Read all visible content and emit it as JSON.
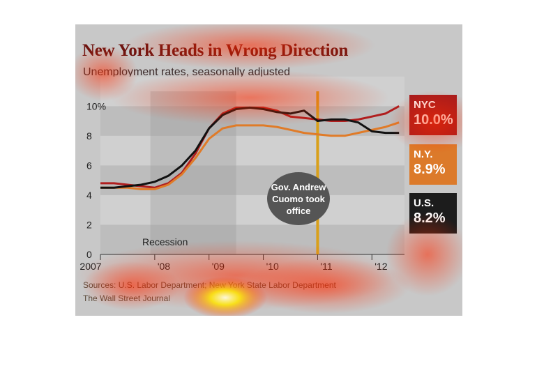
{
  "chart_data": {
    "type": "line",
    "title": "New York Heads in Wrong Direction",
    "subtitle": "Unemployment rates, seasonally adjusted",
    "x_tick_labels": [
      "2007",
      "'08",
      "'09",
      "'10",
      "'11",
      "'12"
    ],
    "x_tick_years": [
      2007,
      2008,
      2009,
      2010,
      2011,
      2012
    ],
    "xlim": [
      2007,
      2012.6
    ],
    "y_tick_labels": [
      "0",
      "2",
      "4",
      "6",
      "8",
      "10%"
    ],
    "y_tick_values": [
      0,
      2,
      4,
      6,
      8,
      10
    ],
    "ylim": [
      0,
      11
    ],
    "grid": "horizontal bands",
    "shaded_region": {
      "label": "Recession",
      "x_start": 2007.92,
      "x_end": 2009.5
    },
    "event_line": {
      "x": 2011.0,
      "label": "Gov. Andrew Cuomo took office"
    },
    "x": [
      2007.0,
      2007.25,
      2007.5,
      2007.75,
      2008.0,
      2008.25,
      2008.5,
      2008.75,
      2009.0,
      2009.25,
      2009.5,
      2009.75,
      2010.0,
      2010.25,
      2010.5,
      2010.75,
      2011.0,
      2011.25,
      2011.5,
      2011.75,
      2012.0,
      2012.25,
      2012.5
    ],
    "series": [
      {
        "name": "NYC",
        "latest_label": "10.0%",
        "color": "#b01e1e",
        "values": [
          4.8,
          4.8,
          4.7,
          4.6,
          4.5,
          4.8,
          5.5,
          6.8,
          8.5,
          9.5,
          9.9,
          9.9,
          9.9,
          9.7,
          9.3,
          9.2,
          9.1,
          9.0,
          9.0,
          9.1,
          9.3,
          9.5,
          10.0
        ]
      },
      {
        "name": "N.Y.",
        "latest_label": "8.9%",
        "color": "#e07b28",
        "values": [
          4.5,
          4.5,
          4.5,
          4.4,
          4.4,
          4.7,
          5.4,
          6.5,
          7.8,
          8.5,
          8.7,
          8.7,
          8.7,
          8.6,
          8.4,
          8.2,
          8.1,
          8.0,
          8.0,
          8.2,
          8.4,
          8.6,
          8.9
        ]
      },
      {
        "name": "U.S.",
        "latest_label": "8.2%",
        "color": "#111111",
        "values": [
          4.5,
          4.5,
          4.6,
          4.7,
          4.9,
          5.3,
          6.0,
          7.0,
          8.5,
          9.4,
          9.8,
          9.9,
          9.8,
          9.6,
          9.5,
          9.7,
          9.0,
          9.1,
          9.1,
          8.9,
          8.3,
          8.2,
          8.2
        ]
      }
    ],
    "source": "Sources: U.S. Labor Department; New York State Labor Department",
    "credit": "The Wall Street Journal"
  }
}
